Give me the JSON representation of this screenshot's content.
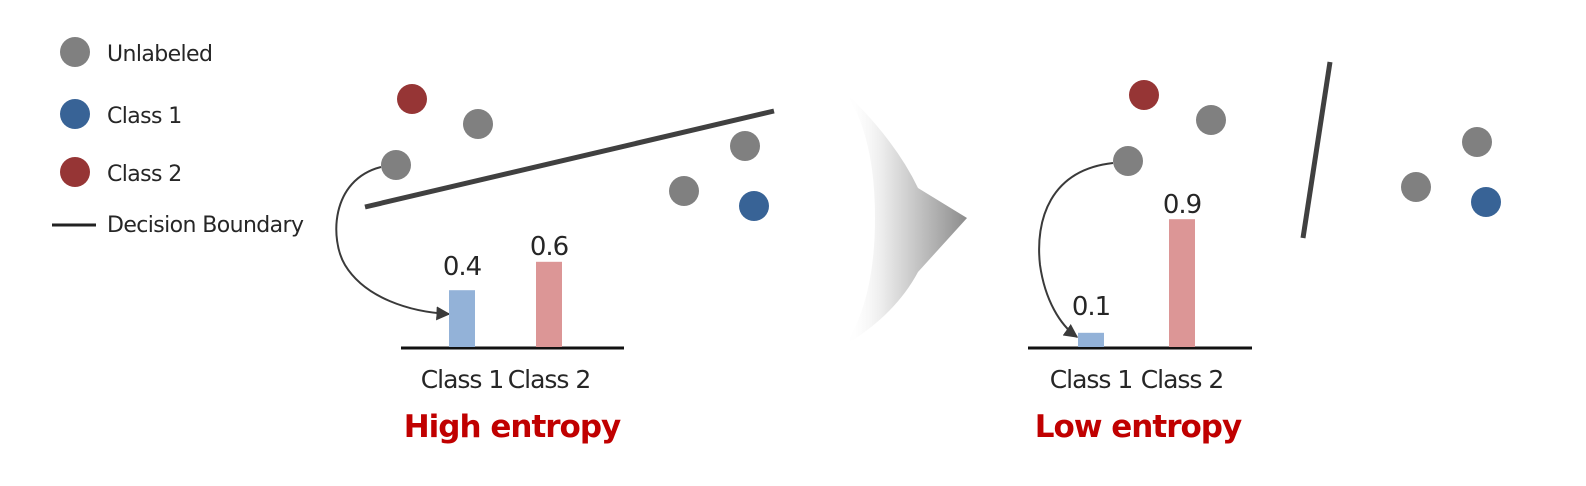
{
  "colors": {
    "unlabeled": "#808080",
    "class1": "#386396",
    "class2": "#963535",
    "boundary": "#404040",
    "bar_class1": "#93b2d8",
    "bar_class2": "#dc9696",
    "entropy": "#c00000",
    "axis": "#111111",
    "arrow": "#3a3a3a",
    "big_arrow": "#8c8c8c"
  },
  "legend": {
    "unlabeled": "Unlabeled",
    "class1": "Class 1",
    "class2": "Class 2",
    "boundary": "Decision Boundary"
  },
  "left_panel": {
    "entropy_label": "High entropy",
    "chart_data": {
      "type": "bar",
      "categories": [
        "Class 1",
        "Class 2"
      ],
      "values": [
        0.4,
        0.6
      ],
      "value_labels": [
        "0.4",
        "0.6"
      ]
    }
  },
  "right_panel": {
    "entropy_label": "Low entropy",
    "chart_data": {
      "type": "bar",
      "categories": [
        "Class 1",
        "Class 2"
      ],
      "values": [
        0.1,
        0.9
      ],
      "value_labels": [
        "0.1",
        "0.9"
      ]
    }
  }
}
